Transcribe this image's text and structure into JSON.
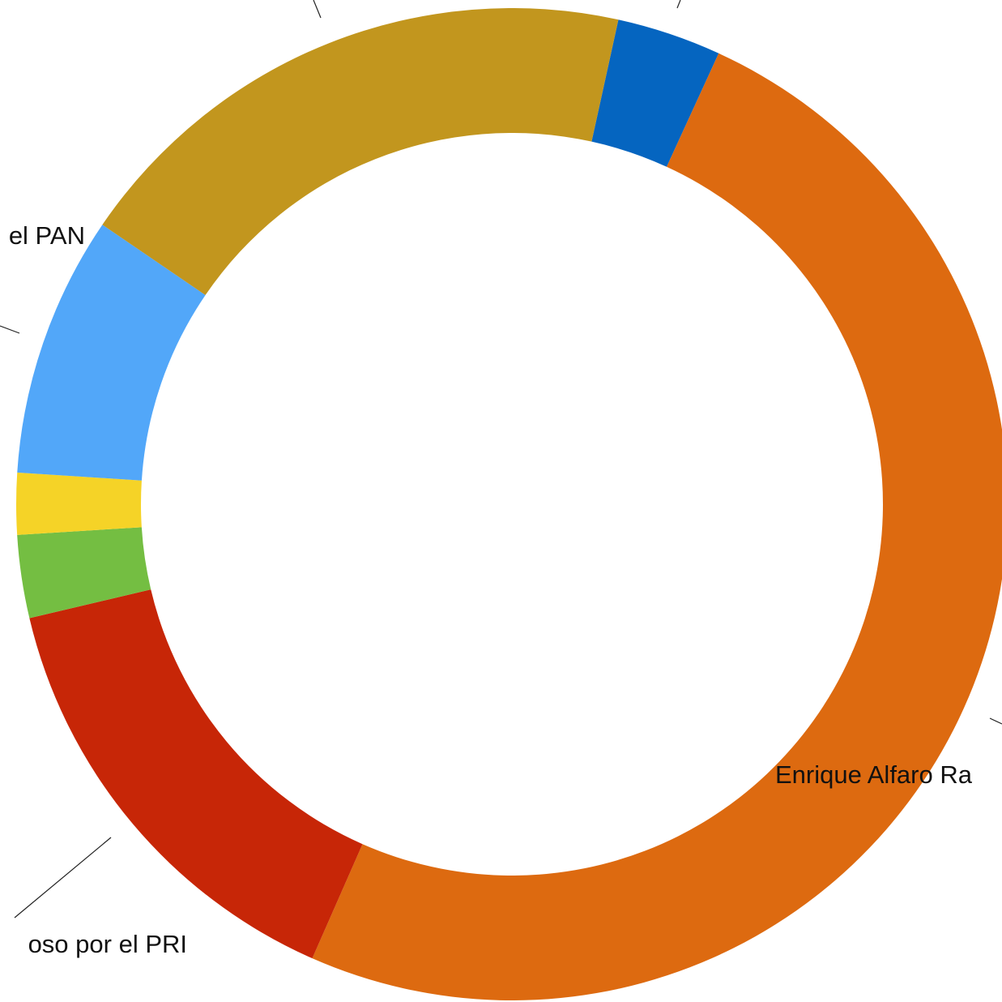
{
  "chart_data": {
    "type": "donut",
    "categories": [
      null,
      "Enrique Alfaro Ra",
      "oso por el PRI",
      null,
      null,
      "el PAN",
      null
    ],
    "values": [
      3.4,
      49.7,
      14.7,
      2.7,
      2.0,
      8.5,
      18.9
    ],
    "colors": [
      "#0565c0",
      "#dd6a10",
      "#c72607",
      "#74be42",
      "#f5d327",
      "#52a7f9",
      "#c2961e"
    ]
  }
}
